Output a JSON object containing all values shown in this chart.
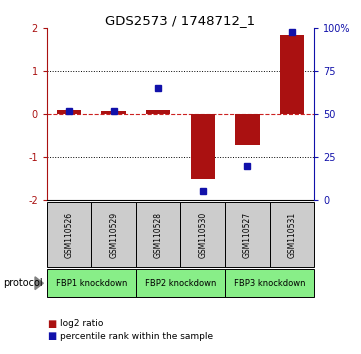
{
  "title": "GDS2573 / 1748712_1",
  "samples": [
    "GSM110526",
    "GSM110529",
    "GSM110528",
    "GSM110530",
    "GSM110527",
    "GSM110531"
  ],
  "log2_ratio": [
    0.1,
    0.08,
    0.1,
    -1.52,
    -0.72,
    1.85
  ],
  "percentile_rank": [
    52,
    52,
    65,
    5,
    20,
    98
  ],
  "ylim": [
    -2,
    2
  ],
  "yticks": [
    -2,
    -1,
    0,
    1,
    2
  ],
  "right_yticks": [
    0,
    25,
    50,
    75,
    100
  ],
  "bar_color": "#AA1111",
  "dot_color": "#1111AA",
  "dashed_line_color": "#CC2222",
  "groups": [
    {
      "label": "FBP1 knockdown",
      "start": 0,
      "end": 1
    },
    {
      "label": "FBP2 knockdown",
      "start": 2,
      "end": 3
    },
    {
      "label": "FBP3 knockdown",
      "start": 4,
      "end": 5
    }
  ],
  "protocol_label": "protocol",
  "legend_log2": "log2 ratio",
  "legend_pct": "percentile rank within the sample",
  "bar_width": 0.55,
  "sample_box_color": "#CCCCCC",
  "group_box_color": "#88EE88"
}
